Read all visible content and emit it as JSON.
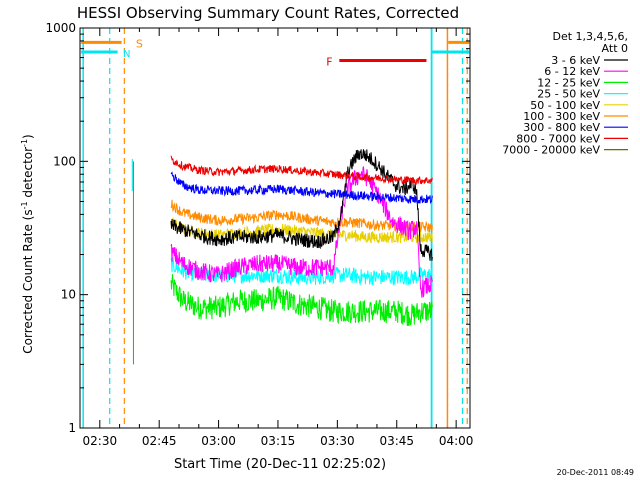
{
  "chart_data": {
    "type": "line",
    "title": "HESSI Observing Summary Count Rates, Corrected",
    "xlabel": "Start Time (20-Dec-11 02:25:02)",
    "ylabel": "Corrected Count Rate (s⁻¹ detector⁻¹)",
    "ylabel_base": "Corrected Count Rate (s",
    "ylabel_sup1": "-1",
    "ylabel_mid": " detector",
    "ylabel_sup2": "-1",
    "ylabel_end": ")",
    "yscale": "log",
    "ylim": [
      1,
      1000
    ],
    "xlim": [
      "02:25:02",
      "04:03:30"
    ],
    "x_ticks": [
      {
        "label": "02:30",
        "min": 5
      },
      {
        "label": "02:45",
        "min": 20
      },
      {
        "label": "03:00",
        "min": 35
      },
      {
        "label": "03:15",
        "min": 50
      },
      {
        "label": "03:30",
        "min": 65
      },
      {
        "label": "03:45",
        "min": 80
      },
      {
        "label": "04:00",
        "min": 95
      }
    ],
    "y_ticks": [
      {
        "label": "1",
        "value": 1
      },
      {
        "label": "10",
        "value": 10
      },
      {
        "label": "100",
        "value": 100
      },
      {
        "label": "1000",
        "value": 1000
      }
    ],
    "legend": {
      "placement": "right",
      "header1": "Det 1,3,4,5,6,",
      "header2": "Att 0"
    },
    "series": [
      {
        "name": "3 - 6 keV",
        "color": "#000000",
        "points": [
          [
            23,
            33
          ],
          [
            27,
            30
          ],
          [
            30,
            28
          ],
          [
            35,
            26
          ],
          [
            40,
            27
          ],
          [
            45,
            27
          ],
          [
            50,
            28
          ],
          [
            55,
            26
          ],
          [
            60,
            25
          ],
          [
            64,
            27
          ],
          [
            66,
            40
          ],
          [
            67.5,
            80
          ],
          [
            69,
            100
          ],
          [
            70.5,
            115
          ],
          [
            72,
            112
          ],
          [
            74,
            102
          ],
          [
            76,
            88
          ],
          [
            78,
            75
          ],
          [
            80,
            65
          ],
          [
            82,
            62
          ],
          [
            84,
            68
          ],
          [
            85,
            60
          ],
          [
            86,
            22
          ],
          [
            89,
            20
          ]
        ]
      },
      {
        "name": "6 - 12 keV",
        "color": "#ff00ff",
        "points": [
          [
            23,
            21
          ],
          [
            26,
            17
          ],
          [
            30,
            15
          ],
          [
            35,
            14
          ],
          [
            40,
            16
          ],
          [
            45,
            17
          ],
          [
            50,
            17
          ],
          [
            55,
            16
          ],
          [
            60,
            16
          ],
          [
            64,
            16
          ],
          [
            66,
            40
          ],
          [
            67.5,
            62
          ],
          [
            69,
            72
          ],
          [
            71,
            80
          ],
          [
            72,
            78
          ],
          [
            73,
            72
          ],
          [
            75,
            58
          ],
          [
            77,
            45
          ],
          [
            79,
            35
          ],
          [
            81,
            33
          ],
          [
            83,
            30
          ],
          [
            85,
            32
          ],
          [
            86,
            11
          ],
          [
            89,
            12
          ]
        ]
      },
      {
        "name": "12 - 25 keV",
        "color": "#00ee00",
        "points": [
          [
            23,
            12
          ],
          [
            26,
            9
          ],
          [
            30,
            8
          ],
          [
            35,
            8
          ],
          [
            40,
            9
          ],
          [
            45,
            9
          ],
          [
            50,
            9.5
          ],
          [
            55,
            8.5
          ],
          [
            60,
            8
          ],
          [
            64,
            7.5
          ],
          [
            68,
            7.5
          ],
          [
            72,
            7.5
          ],
          [
            76,
            7.5
          ],
          [
            80,
            7.5
          ],
          [
            84,
            7
          ],
          [
            86,
            7.5
          ],
          [
            89,
            7.5
          ]
        ]
      },
      {
        "name": "25 - 50 keV",
        "color": "#00ffff",
        "points": [
          [
            23,
            17
          ],
          [
            26,
            15
          ],
          [
            30,
            14
          ],
          [
            35,
            14
          ],
          [
            40,
            14
          ],
          [
            45,
            14
          ],
          [
            50,
            14
          ],
          [
            55,
            13.5
          ],
          [
            60,
            13.5
          ],
          [
            64,
            14
          ],
          [
            68,
            14
          ],
          [
            72,
            13.5
          ],
          [
            76,
            13.5
          ],
          [
            80,
            13.5
          ],
          [
            84,
            13.5
          ],
          [
            86,
            14
          ],
          [
            89,
            14
          ]
        ]
      },
      {
        "name": "50 - 100 keV",
        "color": "#e8d000",
        "points": [
          [
            23,
            35
          ],
          [
            26,
            31
          ],
          [
            30,
            29
          ],
          [
            35,
            28
          ],
          [
            40,
            29
          ],
          [
            45,
            30
          ],
          [
            50,
            31
          ],
          [
            55,
            30
          ],
          [
            60,
            29
          ],
          [
            64,
            28
          ],
          [
            68,
            28
          ],
          [
            72,
            27
          ],
          [
            76,
            27
          ],
          [
            80,
            27
          ],
          [
            84,
            27
          ],
          [
            86,
            27
          ],
          [
            89,
            27
          ]
        ]
      },
      {
        "name": "100 - 300 keV",
        "color": "#ff8c00",
        "points": [
          [
            23,
            48
          ],
          [
            26,
            41
          ],
          [
            30,
            38
          ],
          [
            35,
            36
          ],
          [
            40,
            37
          ],
          [
            45,
            38
          ],
          [
            50,
            40
          ],
          [
            55,
            38
          ],
          [
            60,
            36
          ],
          [
            64,
            35
          ],
          [
            68,
            35
          ],
          [
            72,
            34
          ],
          [
            76,
            33
          ],
          [
            80,
            33
          ],
          [
            84,
            32
          ],
          [
            86,
            32
          ],
          [
            89,
            32
          ]
        ]
      },
      {
        "name": "300 - 800 keV",
        "color": "#0000ff",
        "points": [
          [
            23,
            80
          ],
          [
            26,
            66
          ],
          [
            30,
            61
          ],
          [
            35,
            60
          ],
          [
            40,
            60
          ],
          [
            45,
            61
          ],
          [
            50,
            62
          ],
          [
            55,
            60
          ],
          [
            60,
            58
          ],
          [
            64,
            57
          ],
          [
            68,
            56
          ],
          [
            72,
            55
          ],
          [
            76,
            54
          ],
          [
            80,
            53
          ],
          [
            84,
            52
          ],
          [
            86,
            52
          ],
          [
            89,
            52
          ]
        ]
      },
      {
        "name": "800 - 7000 keV",
        "color": "#ee0000",
        "points": [
          [
            23,
            104
          ],
          [
            26,
            92
          ],
          [
            30,
            86
          ],
          [
            35,
            83
          ],
          [
            40,
            85
          ],
          [
            45,
            87
          ],
          [
            50,
            88
          ],
          [
            55,
            85
          ],
          [
            60,
            82
          ],
          [
            64,
            80
          ],
          [
            68,
            78
          ],
          [
            72,
            76
          ],
          [
            76,
            75
          ],
          [
            80,
            73
          ],
          [
            84,
            72
          ],
          [
            86,
            72
          ],
          [
            89,
            72
          ]
        ]
      },
      {
        "name": "7000 - 20000 keV",
        "color": "#6b6b00",
        "points": []
      }
    ],
    "annotations": [
      {
        "text": "S",
        "color": "#ff8c00"
      },
      {
        "text": "N",
        "color": "#00e5ee"
      },
      {
        "text": "F",
        "color": "#ee0000"
      }
    ],
    "footer_date": "20-Dec-2011 08:49"
  }
}
